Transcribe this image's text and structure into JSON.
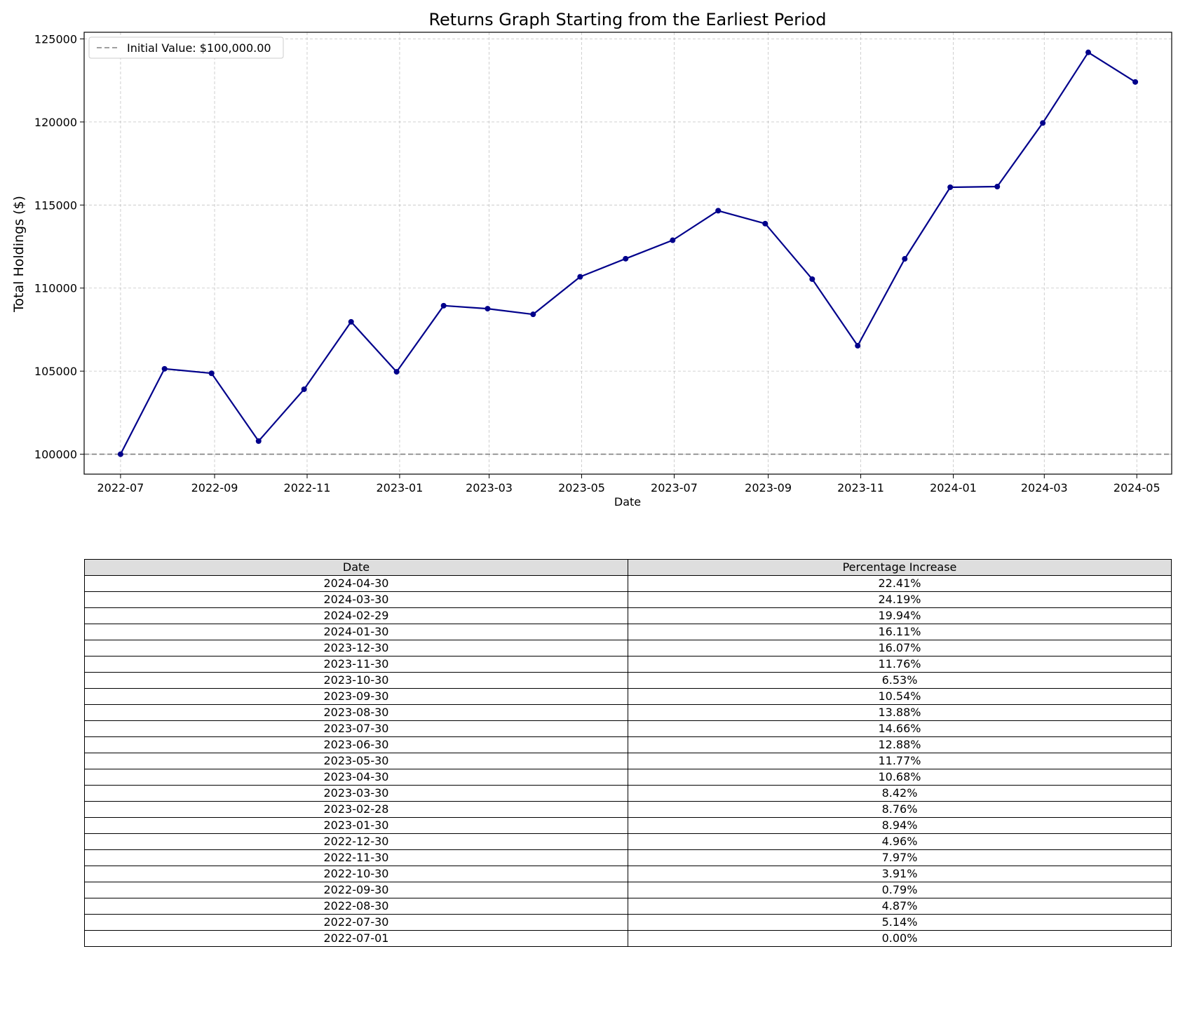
{
  "chart_data": {
    "type": "line",
    "title": "Returns Graph Starting from the Earliest Period",
    "xlabel": "Date",
    "ylabel": "Total Holdings ($)",
    "xlim": [
      "2022-06-07",
      "2024-05-24"
    ],
    "ylim": [
      98800,
      125400
    ],
    "x_ticks": [
      "2022-07-01",
      "2022-09-01",
      "2022-11-01",
      "2023-01-01",
      "2023-03-01",
      "2023-05-01",
      "2023-07-01",
      "2023-09-01",
      "2023-11-01",
      "2024-01-01",
      "2024-03-01",
      "2024-05-01"
    ],
    "x_tick_labels": [
      "2022-07",
      "2022-09",
      "2022-11",
      "2023-01",
      "2023-03",
      "2023-05",
      "2023-07",
      "2023-09",
      "2023-11",
      "2024-01",
      "2024-03",
      "2024-05"
    ],
    "y_ticks": [
      100000,
      105000,
      110000,
      115000,
      120000,
      125000
    ],
    "y_tick_labels": [
      "100000",
      "105000",
      "110000",
      "115000",
      "120000",
      "125000"
    ],
    "grid": true,
    "legend_position": "top-left",
    "reference_line": {
      "y": 100000,
      "name": "Initial Value: $100,000.00",
      "color": "#808080",
      "style": "dashed"
    },
    "series": [
      {
        "color": "#00008b",
        "x": [
          "2022-07-01",
          "2022-07-30",
          "2022-08-30",
          "2022-09-30",
          "2022-10-30",
          "2022-11-30",
          "2022-12-30",
          "2023-01-30",
          "2023-02-28",
          "2023-03-30",
          "2023-04-30",
          "2023-05-30",
          "2023-06-30",
          "2023-07-30",
          "2023-08-30",
          "2023-09-30",
          "2023-10-30",
          "2023-11-30",
          "2023-12-30",
          "2024-01-30",
          "2024-02-29",
          "2024-03-30",
          "2024-04-30"
        ],
        "y": [
          100000,
          105140,
          104870,
          100790,
          103910,
          107970,
          104960,
          108940,
          108760,
          108420,
          110680,
          111770,
          112880,
          114660,
          113880,
          110540,
          106530,
          111760,
          116070,
          116110,
          119940,
          124190,
          122410
        ]
      }
    ],
    "table": {
      "columns": [
        "Date",
        "Percentage Increase"
      ],
      "rows": [
        [
          "2024-04-30",
          "22.41%"
        ],
        [
          "2024-03-30",
          "24.19%"
        ],
        [
          "2024-02-29",
          "19.94%"
        ],
        [
          "2024-01-30",
          "16.11%"
        ],
        [
          "2023-12-30",
          "16.07%"
        ],
        [
          "2023-11-30",
          "11.76%"
        ],
        [
          "2023-10-30",
          "6.53%"
        ],
        [
          "2023-09-30",
          "10.54%"
        ],
        [
          "2023-08-30",
          "13.88%"
        ],
        [
          "2023-07-30",
          "14.66%"
        ],
        [
          "2023-06-30",
          "12.88%"
        ],
        [
          "2023-05-30",
          "11.77%"
        ],
        [
          "2023-04-30",
          "10.68%"
        ],
        [
          "2023-03-30",
          "8.42%"
        ],
        [
          "2023-02-28",
          "8.76%"
        ],
        [
          "2023-01-30",
          "8.94%"
        ],
        [
          "2022-12-30",
          "4.96%"
        ],
        [
          "2022-11-30",
          "7.97%"
        ],
        [
          "2022-10-30",
          "3.91%"
        ],
        [
          "2022-09-30",
          "0.79%"
        ],
        [
          "2022-08-30",
          "4.87%"
        ],
        [
          "2022-07-30",
          "5.14%"
        ],
        [
          "2022-07-01",
          "0.00%"
        ]
      ]
    }
  }
}
